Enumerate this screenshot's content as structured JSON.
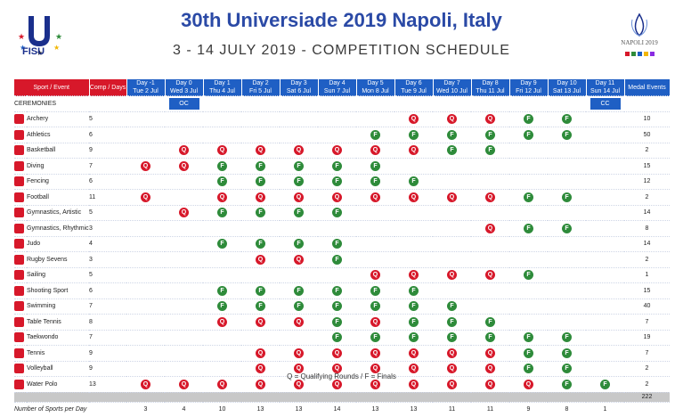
{
  "header": {
    "title": "30th Universiade 2019 Napoli, Italy",
    "subtitle": "3 - 14 JULY 2019 - COMPETITION SCHEDULE",
    "left_logo_text": "FISU",
    "right_logo_text": "NAPOLI 2019"
  },
  "colors": {
    "blue": "#1f5fc4",
    "red": "#d7182a",
    "green": "#2e8b3a"
  },
  "columns": {
    "sport": "Sport / Event",
    "comp": "Comp / Days",
    "medal": "Medal Events",
    "days": [
      {
        "l1": "Day -1",
        "l2": "Tue 2 Jul"
      },
      {
        "l1": "Day 0",
        "l2": "Wed 3 Jul"
      },
      {
        "l1": "Day 1",
        "l2": "Thu 4 Jul"
      },
      {
        "l1": "Day 2",
        "l2": "Fri 5 Jul"
      },
      {
        "l1": "Day 3",
        "l2": "Sat 6 Jul"
      },
      {
        "l1": "Day 4",
        "l2": "Sun 7 Jul"
      },
      {
        "l1": "Day 5",
        "l2": "Mon 8 Jul"
      },
      {
        "l1": "Day 6",
        "l2": "Tue 9 Jul"
      },
      {
        "l1": "Day 7",
        "l2": "Wed 10 Jul"
      },
      {
        "l1": "Day 8",
        "l2": "Thu 11 Jul"
      },
      {
        "l1": "Day 9",
        "l2": "Fri 12 Jul"
      },
      {
        "l1": "Day 10",
        "l2": "Sat 13 Jul"
      },
      {
        "l1": "Day 11",
        "l2": "Sun 14 Jul"
      }
    ]
  },
  "ceremonies": {
    "label": "CEREMONIES",
    "days": [
      "",
      "OC",
      "",
      "",
      "",
      "",
      "",
      "",
      "",
      "",
      "",
      "",
      "CC"
    ]
  },
  "sports": [
    {
      "name": "Archery",
      "comp": "5",
      "medal": "10",
      "days": [
        "",
        "",
        "",
        "",
        "",
        "",
        "",
        "Q",
        "Q",
        "Q",
        "F",
        "F",
        ""
      ]
    },
    {
      "name": "Athletics",
      "comp": "6",
      "medal": "50",
      "days": [
        "",
        "",
        "",
        "",
        "",
        "",
        "F",
        "F",
        "F",
        "F",
        "F",
        "F",
        ""
      ]
    },
    {
      "name": "Basketball",
      "comp": "9",
      "medal": "2",
      "days": [
        "",
        "Q",
        "Q",
        "Q",
        "Q",
        "Q",
        "Q",
        "Q",
        "F",
        "F",
        "",
        "",
        ""
      ]
    },
    {
      "name": "Diving",
      "comp": "7",
      "medal": "15",
      "days": [
        "Q",
        "Q",
        "F",
        "F",
        "F",
        "F",
        "F",
        "",
        "",
        "",
        "",
        "",
        ""
      ]
    },
    {
      "name": "Fencing",
      "comp": "6",
      "medal": "12",
      "days": [
        "",
        "",
        "F",
        "F",
        "F",
        "F",
        "F",
        "F",
        "",
        "",
        "",
        "",
        ""
      ]
    },
    {
      "name": "Football",
      "comp": "11",
      "medal": "2",
      "days": [
        "Q",
        "",
        "Q",
        "Q",
        "Q",
        "Q",
        "Q",
        "Q",
        "Q",
        "Q",
        "F",
        "F",
        ""
      ]
    },
    {
      "name": "Gymnastics, Artistic",
      "comp": "5",
      "medal": "14",
      "days": [
        "",
        "Q",
        "F",
        "F",
        "F",
        "F",
        "",
        "",
        "",
        "",
        "",
        "",
        ""
      ]
    },
    {
      "name": "Gymnastics, Rhythmic",
      "comp": "3",
      "medal": "8",
      "days": [
        "",
        "",
        "",
        "",
        "",
        "",
        "",
        "",
        "",
        "Q",
        "F",
        "F",
        ""
      ]
    },
    {
      "name": "Judo",
      "comp": "4",
      "medal": "14",
      "days": [
        "",
        "",
        "F",
        "F",
        "F",
        "F",
        "",
        "",
        "",
        "",
        "",
        "",
        ""
      ]
    },
    {
      "name": "Rugby Sevens",
      "comp": "3",
      "medal": "2",
      "days": [
        "",
        "",
        "",
        "Q",
        "Q",
        "F",
        "",
        "",
        "",
        "",
        "",
        "",
        ""
      ]
    },
    {
      "name": "Sailing",
      "comp": "5",
      "medal": "1",
      "days": [
        "",
        "",
        "",
        "",
        "",
        "",
        "Q",
        "Q",
        "Q",
        "Q",
        "F",
        "",
        ""
      ]
    },
    {
      "name": "Shooting Sport",
      "comp": "6",
      "medal": "15",
      "days": [
        "",
        "",
        "F",
        "F",
        "F",
        "F",
        "F",
        "F",
        "",
        "",
        "",
        "",
        ""
      ]
    },
    {
      "name": "Swimming",
      "comp": "7",
      "medal": "40",
      "days": [
        "",
        "",
        "F",
        "F",
        "F",
        "F",
        "F",
        "F",
        "F",
        "",
        "",
        "",
        ""
      ]
    },
    {
      "name": "Table Tennis",
      "comp": "8",
      "medal": "7",
      "days": [
        "",
        "",
        "Q",
        "Q",
        "Q",
        "F",
        "Q",
        "F",
        "F",
        "F",
        "",
        "",
        ""
      ]
    },
    {
      "name": "Taekwondo",
      "comp": "7",
      "medal": "19",
      "days": [
        "",
        "",
        "",
        "",
        "",
        "F",
        "F",
        "F",
        "F",
        "F",
        "F",
        "F",
        ""
      ]
    },
    {
      "name": "Tennis",
      "comp": "9",
      "medal": "7",
      "days": [
        "",
        "",
        "",
        "Q",
        "Q",
        "Q",
        "Q",
        "Q",
        "Q",
        "Q",
        "F",
        "F",
        ""
      ]
    },
    {
      "name": "Volleyball",
      "comp": "9",
      "medal": "2",
      "days": [
        "",
        "",
        "",
        "Q",
        "Q",
        "Q",
        "Q",
        "Q",
        "Q",
        "Q",
        "F",
        "F",
        ""
      ]
    },
    {
      "name": "Water Polo",
      "comp": "13",
      "medal": "2",
      "days": [
        "Q",
        "Q",
        "Q",
        "Q",
        "Q",
        "Q",
        "Q",
        "Q",
        "Q",
        "Q",
        "Q",
        "F",
        "F"
      ]
    }
  ],
  "total_medals": "222",
  "sports_per_day": {
    "label": "Number of Sports per Day",
    "values": [
      "3",
      "4",
      "10",
      "13",
      "13",
      "14",
      "13",
      "13",
      "11",
      "11",
      "9",
      "8",
      "1"
    ]
  },
  "legend": "Q = Qualifying Rounds / F = Finals"
}
